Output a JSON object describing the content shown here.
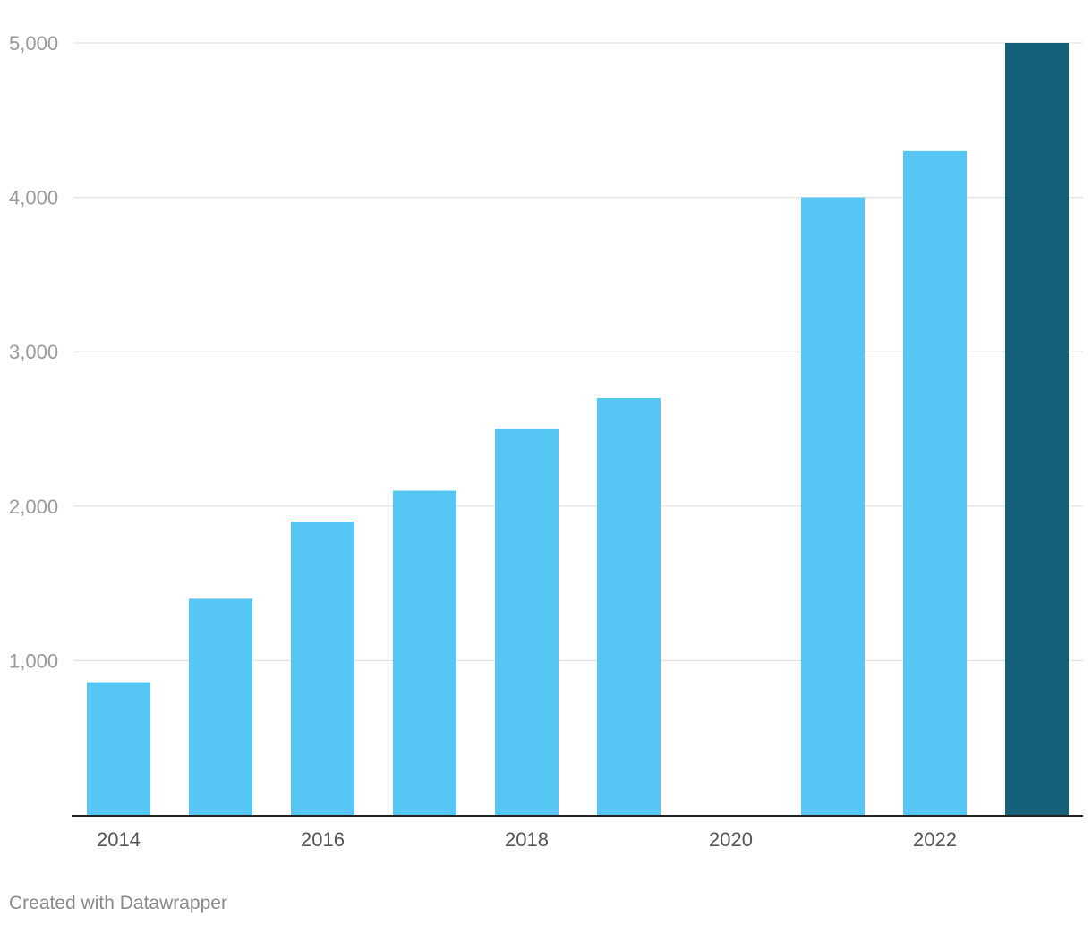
{
  "chart_data": {
    "type": "bar",
    "categories": [
      "2014",
      "2015",
      "2016",
      "2017",
      "2018",
      "2019",
      "2020",
      "2021",
      "2022",
      "2023"
    ],
    "values": [
      860,
      1400,
      1900,
      2100,
      2500,
      2700,
      0,
      4000,
      4300,
      5000
    ],
    "x_tick_labels": [
      "2014",
      "2016",
      "2018",
      "2020",
      "2022"
    ],
    "y_tick_labels": [
      "1,000",
      "2,000",
      "3,000",
      "4,000",
      "5,000"
    ],
    "y_ticks": [
      1000,
      2000,
      3000,
      4000,
      5000
    ],
    "ylim": [
      0,
      5000
    ],
    "grid": true,
    "colors": {
      "bar": "#56c6f4",
      "highlight": "#156079"
    },
    "highlight_index": 9
  },
  "footer": {
    "credit": "Created with Datawrapper"
  }
}
